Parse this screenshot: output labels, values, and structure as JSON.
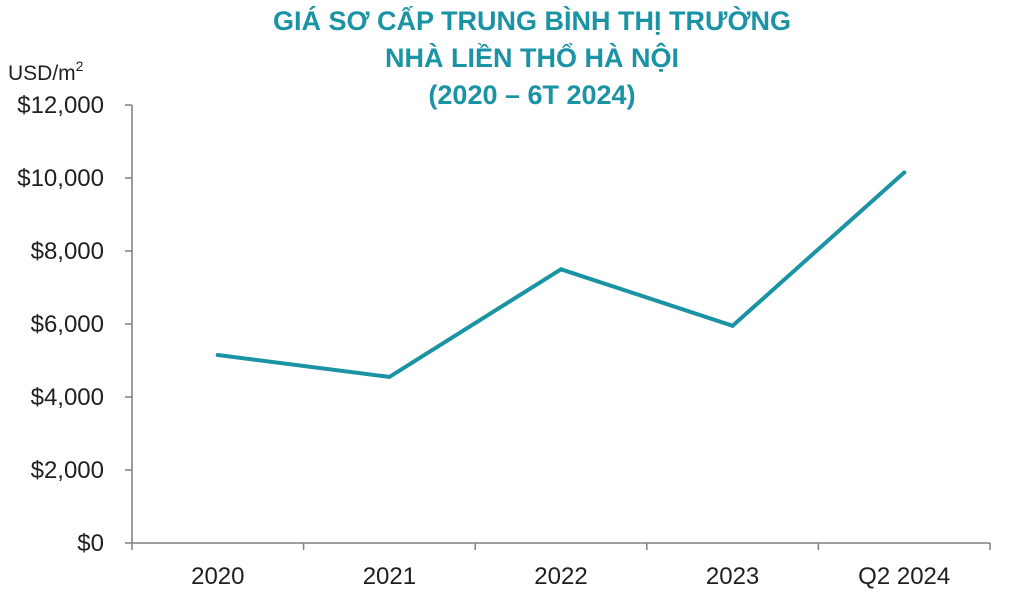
{
  "colors": {
    "title": "#1a93a4",
    "line": "#1a93a4",
    "axis": "#7f7f7f",
    "text": "#1f1f1f"
  },
  "chart_data": {
    "type": "line",
    "title_lines": [
      "GIÁ SƠ CẤP TRUNG BÌNH THỊ TRƯỜNG",
      "NHÀ LIỀN THỔ HÀ NỘI",
      "(2020 – 6T 2024)"
    ],
    "ylabel": "USD/m",
    "ylabel_superscript": "2",
    "categories": [
      "2020",
      "2021",
      "2022",
      "2023",
      "Q2 2024"
    ],
    "series": [
      {
        "values": [
          5150,
          4550,
          7500,
          5950,
          10150
        ]
      }
    ],
    "ylim": [
      0,
      12000
    ],
    "yticks": [
      0,
      2000,
      4000,
      6000,
      8000,
      10000,
      12000
    ],
    "ytick_labels": [
      "$0",
      "$2,000",
      "$4,000",
      "$6,000",
      "$8,000",
      "$10,000",
      "$12,000"
    ],
    "grid": false,
    "legend": "none"
  }
}
